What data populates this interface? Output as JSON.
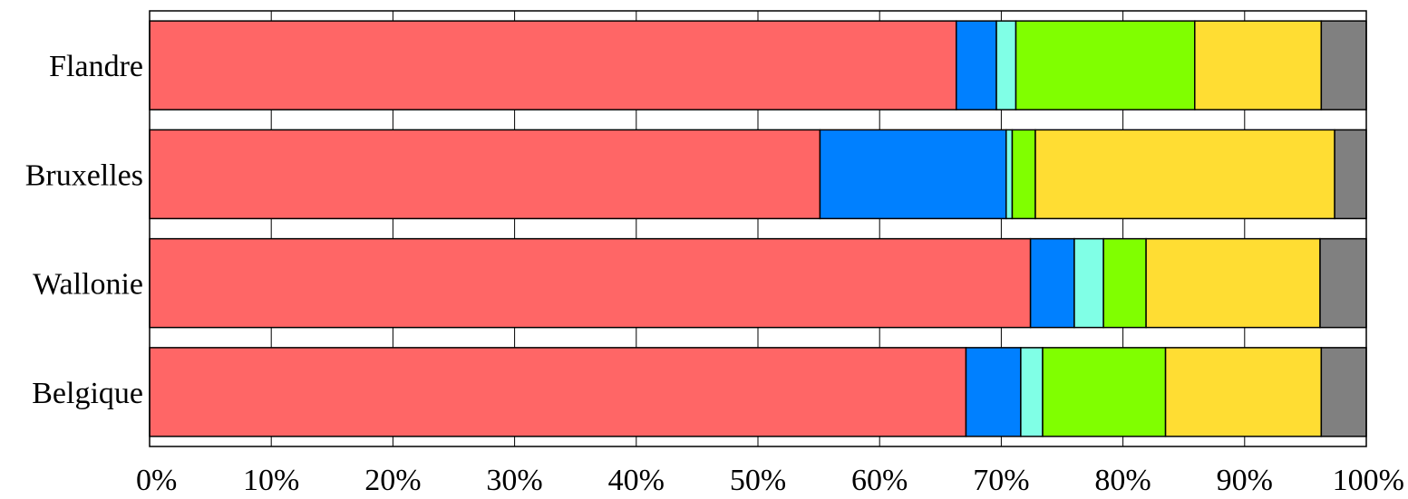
{
  "chart_data": {
    "type": "bar",
    "orientation": "horizontal",
    "stacked": true,
    "normalized_percent": true,
    "title": "",
    "xlabel": "",
    "ylabel": "",
    "xlim": [
      0,
      100
    ],
    "x_ticks": [
      "0%",
      "10%",
      "20%",
      "30%",
      "40%",
      "50%",
      "60%",
      "70%",
      "80%",
      "90%",
      "100%"
    ],
    "categories": [
      "Flandre",
      "Bruxelles",
      "Wallonie",
      "Belgique"
    ],
    "series": [
      {
        "color": "#ff6666",
        "values": [
          66.3,
          55.1,
          72.4,
          67.1
        ]
      },
      {
        "color": "#0080ff",
        "values": [
          3.3,
          15.3,
          3.6,
          4.5
        ]
      },
      {
        "color": "#80ffe6",
        "values": [
          1.6,
          0.5,
          2.4,
          1.8
        ]
      },
      {
        "color": "#80ff00",
        "values": [
          14.7,
          1.9,
          3.5,
          10.1
        ]
      },
      {
        "color": "#ffdd33",
        "values": [
          10.4,
          24.6,
          14.3,
          12.8
        ]
      },
      {
        "color": "#808080",
        "values": [
          3.7,
          2.6,
          3.8,
          3.7
        ]
      }
    ],
    "grid": true,
    "legend": "none"
  }
}
